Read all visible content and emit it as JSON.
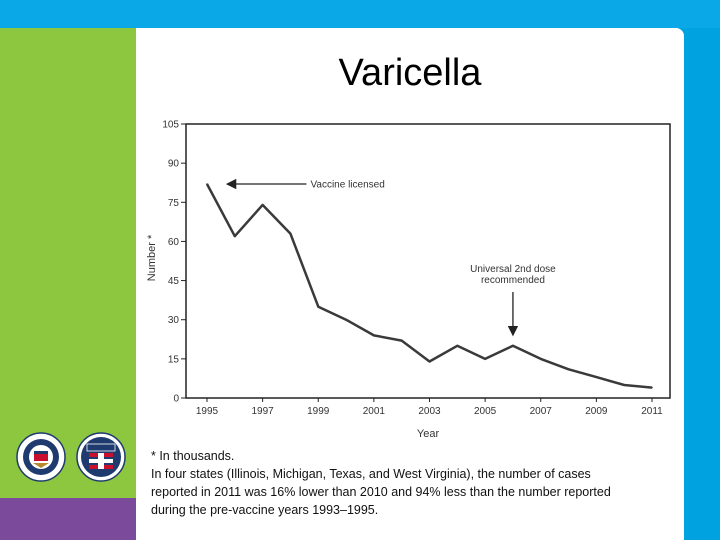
{
  "slide": {
    "title": "Varicella",
    "footnote_lines": [
      "* In thousands.",
      "In four states (Illinois, Michigan, Texas, and West Virginia), the number of cases",
      "reported in 2011 was 16% lower than 2010 and 94% less than the number reported",
      "during the pre-vaccine years 1993–1995."
    ],
    "colors": {
      "green": "#8dc63f",
      "blue": "#00a3e0",
      "purple": "#7b4a9b"
    }
  },
  "chart_data": {
    "type": "line",
    "xlabel": "Year",
    "ylabel": "Number *",
    "xlim": [
      1995,
      2011
    ],
    "ylim": [
      0,
      105
    ],
    "x_ticks": [
      "1995",
      "1997",
      "1999",
      "2001",
      "2003",
      "2005",
      "2007",
      "2009",
      "2011"
    ],
    "y_ticks": [
      "0",
      "15",
      "30",
      "45",
      "60",
      "75",
      "90",
      "105"
    ],
    "series": [
      {
        "x": [
          1995,
          1996,
          1997,
          1998,
          1999,
          2000,
          2001,
          2002,
          2003,
          2004,
          2005,
          2006,
          2007,
          2008,
          2009,
          2010,
          2011
        ],
        "y": [
          82,
          62,
          74,
          63,
          35,
          30,
          24,
          22,
          14,
          20,
          15,
          20,
          15,
          11,
          8,
          5,
          4
        ]
      }
    ],
    "annotations": [
      {
        "lines": [
          "Vaccine licensed"
        ],
        "x": 1995.7,
        "y": 82
      },
      {
        "lines": [
          "Universal 2nd dose",
          "recommended"
        ],
        "x": 2006,
        "y": 20
      }
    ]
  }
}
